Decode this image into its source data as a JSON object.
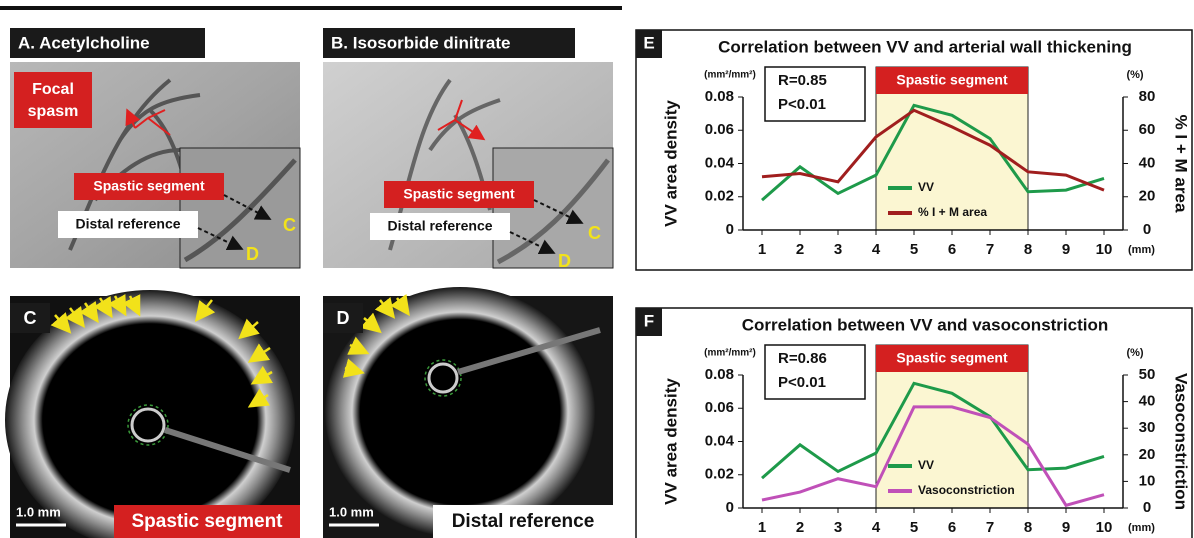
{
  "panels": {
    "a": {
      "title": "A. Acetylcholine",
      "callout": [
        "Focal",
        "spasm"
      ],
      "segment_label": "Spastic segment",
      "reference_label": "Distal reference",
      "marker_c": "C",
      "marker_d": "D"
    },
    "b": {
      "title": "B. Isosorbide dinitrate",
      "segment_label": "Spastic segment",
      "reference_label": "Distal reference",
      "marker_c": "C",
      "marker_d": "D"
    },
    "c": {
      "letter": "C",
      "scale": "1.0 mm",
      "caption": "Spastic segment"
    },
    "d": {
      "letter": "D",
      "scale": "1.0 mm",
      "caption": "Distal reference"
    }
  },
  "chart_data": [
    {
      "type": "line",
      "panel": "E",
      "title": "Correlation between VV and arterial wall thickening",
      "ylabel": "VV area density",
      "y2label": "% I + M area",
      "yunit": "(mm²/mm²)",
      "y2unit": "(%)",
      "xunit": "(mm)",
      "x": [
        1,
        2,
        3,
        4,
        5,
        6,
        7,
        8,
        9,
        10
      ],
      "xlim": [
        0.5,
        10.5
      ],
      "xticks": [
        1,
        2,
        3,
        4,
        5,
        6,
        7,
        8,
        9,
        10
      ],
      "ylim": [
        0,
        0.08
      ],
      "yticks": [
        0,
        0.02,
        0.04,
        0.06,
        0.08
      ],
      "y2lim": [
        0,
        80
      ],
      "y2ticks": [
        0,
        20,
        40,
        60,
        80
      ],
      "highlight": {
        "label": "Spastic segment",
        "x_range": [
          4,
          8
        ],
        "color": "#fbf6d2"
      },
      "annotations": [
        "R=0.85",
        "P<0.01"
      ],
      "legend": "bottom",
      "series": [
        {
          "name": "VV",
          "color": "#1e9a4a",
          "values": [
            0.018,
            0.038,
            0.022,
            0.033,
            0.075,
            0.069,
            0.055,
            0.023,
            0.024,
            0.031
          ]
        },
        {
          "name": "% I + M area",
          "color": "#a01e1e",
          "axis": "y2",
          "values": [
            32,
            34,
            29,
            56,
            72,
            62,
            51,
            35,
            33,
            24
          ]
        }
      ]
    },
    {
      "type": "line",
      "panel": "F",
      "title": "Correlation between VV and vasoconstriction",
      "ylabel": "VV area density",
      "y2label": "Vasoconstriction",
      "yunit": "(mm²/mm²)",
      "y2unit": "(%)",
      "xunit": "(mm)",
      "x": [
        1,
        2,
        3,
        4,
        5,
        6,
        7,
        8,
        9,
        10
      ],
      "xlim": [
        0.5,
        10.5
      ],
      "xticks": [
        1,
        2,
        3,
        4,
        5,
        6,
        7,
        8,
        9,
        10
      ],
      "ylim": [
        0,
        0.08
      ],
      "yticks": [
        0,
        0.02,
        0.04,
        0.06,
        0.08
      ],
      "y2lim": [
        0,
        50
      ],
      "y2ticks": [
        0,
        10,
        20,
        30,
        40,
        50
      ],
      "highlight": {
        "label": "Spastic segment",
        "x_range": [
          4,
          8
        ],
        "color": "#fbf6d2"
      },
      "annotations": [
        "R=0.86",
        "P<0.01"
      ],
      "legend": "bottom",
      "series": [
        {
          "name": "VV",
          "color": "#1e9a4a",
          "values": [
            0.018,
            0.038,
            0.022,
            0.033,
            0.075,
            0.069,
            0.055,
            0.023,
            0.024,
            0.031
          ]
        },
        {
          "name": "Vasoconstriction",
          "color": "#c050b8",
          "axis": "y2",
          "values": [
            3,
            6,
            11,
            8,
            38,
            38,
            34,
            24,
            1,
            5
          ]
        }
      ]
    }
  ]
}
